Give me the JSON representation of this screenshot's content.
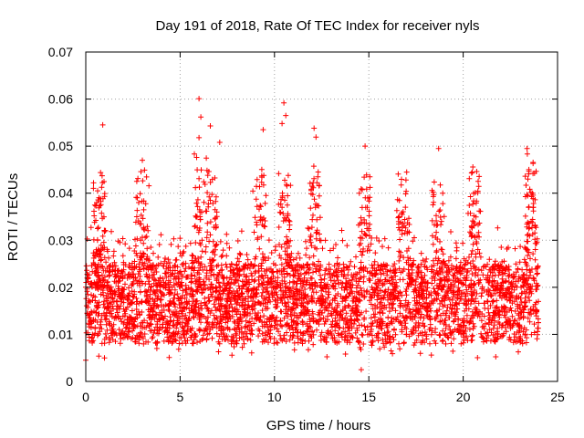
{
  "chart_data": {
    "type": "scatter",
    "title": "Day 191 of 2018, Rate Of TEC Index for receiver nyls",
    "xlabel": "GPS time / hours",
    "ylabel": "ROTI / TECUs",
    "xlim": [
      0,
      25
    ],
    "ylim": [
      0,
      0.07
    ],
    "xticks": [
      0,
      5,
      10,
      15,
      20,
      25
    ],
    "xtick_labels": [
      "0",
      "5",
      "10",
      "15",
      "20",
      "25"
    ],
    "yticks": [
      0,
      0.01,
      0.02,
      0.03,
      0.04,
      0.05,
      0.06,
      0.07
    ],
    "ytick_labels": [
      "0",
      "0.01",
      "0.02",
      "0.03",
      "0.04",
      "0.05",
      "0.06",
      "0.07"
    ],
    "grid": true,
    "marker": "+",
    "color": "#ff0000",
    "series": [
      {
        "name": "ROTI",
        "x_range": [
          0,
          24
        ],
        "typical_range": [
          0.008,
          0.025
        ],
        "notable_points": [
          {
            "x": 0.9,
            "y": 0.0545
          },
          {
            "x": 6.0,
            "y": 0.0601
          },
          {
            "x": 6.1,
            "y": 0.0562
          },
          {
            "x": 6.0,
            "y": 0.0518
          },
          {
            "x": 6.6,
            "y": 0.0543
          },
          {
            "x": 10.5,
            "y": 0.0592
          },
          {
            "x": 10.6,
            "y": 0.0565
          },
          {
            "x": 10.4,
            "y": 0.0548
          },
          {
            "x": 9.4,
            "y": 0.0535
          },
          {
            "x": 12.1,
            "y": 0.0538
          },
          {
            "x": 12.2,
            "y": 0.0519
          },
          {
            "x": 14.8,
            "y": 0.05
          },
          {
            "x": 18.7,
            "y": 0.0495
          },
          {
            "x": 3.0,
            "y": 0.047
          },
          {
            "x": 7.1,
            "y": 0.0508
          },
          {
            "x": 23.7,
            "y": 0.0442
          },
          {
            "x": 14.6,
            "y": 0.0025
          },
          {
            "x": 0.0,
            "y": 0.0045
          }
        ]
      }
    ]
  }
}
